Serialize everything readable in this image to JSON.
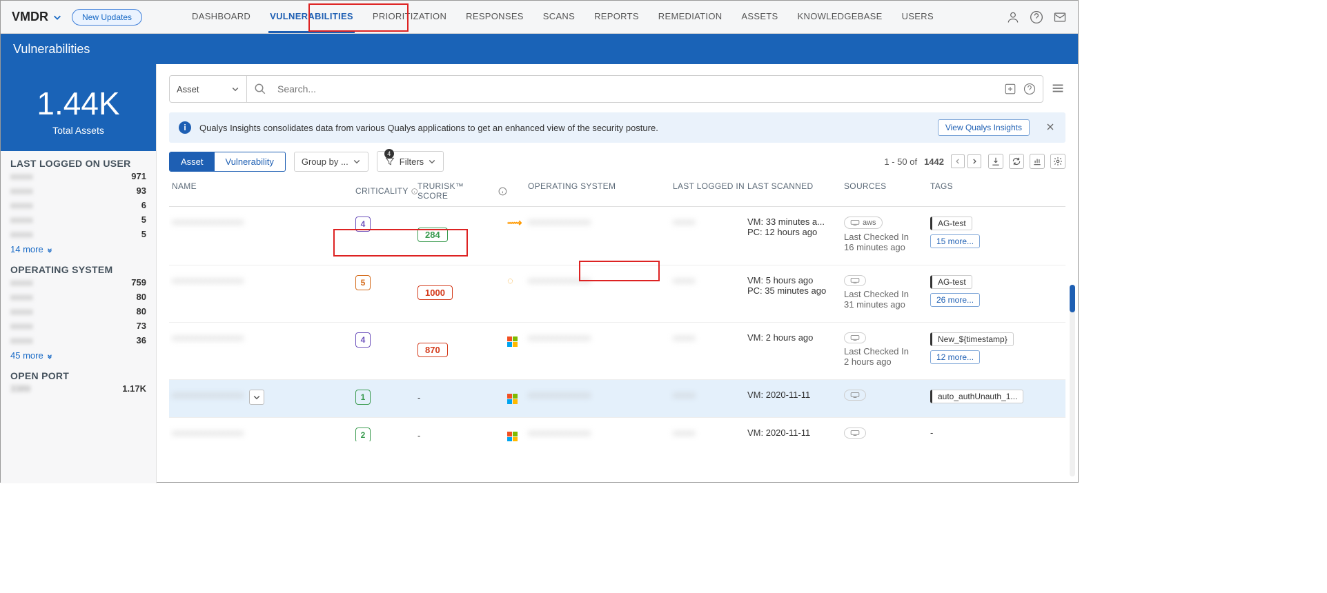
{
  "brand": "VMDR",
  "new_updates": "New Updates",
  "nav": [
    "DASHBOARD",
    "VULNERABILITIES",
    "PRIORITIZATION",
    "RESPONSES",
    "SCANS",
    "REPORTS",
    "REMEDIATION",
    "ASSETS",
    "KNOWLEDGEBASE",
    "USERS"
  ],
  "nav_active": 1,
  "page_title": "Vulnerabilities",
  "stat_num": "1.44K",
  "stat_label": "Total Assets",
  "facets": [
    {
      "title": "LAST LOGGED ON USER",
      "rows": [
        [
          "",
          "971"
        ],
        [
          "",
          "93"
        ],
        [
          "",
          "6"
        ],
        [
          "",
          "5"
        ],
        [
          "",
          "5"
        ]
      ],
      "more": "14 more"
    },
    {
      "title": "OPERATING SYSTEM",
      "rows": [
        [
          "",
          "759"
        ],
        [
          "",
          "80"
        ],
        [
          "",
          "80"
        ],
        [
          "",
          "73"
        ],
        [
          "",
          "36"
        ]
      ],
      "more": "45 more"
    },
    {
      "title": "OPEN PORT",
      "rows": [
        [
          "3389",
          "1.17K"
        ]
      ],
      "more": ""
    }
  ],
  "search_scope": "Asset",
  "search_placeholder": "Search...",
  "insight_text": "Qualys Insights consolidates data from various Qualys applications to get an enhanced view of the security posture.",
  "insight_btn": "View Qualys Insights",
  "seg_asset": "Asset",
  "seg_vuln": "Vulnerability",
  "group_by": "Group by ...",
  "filters": "Filters",
  "filter_count": "4",
  "range_text": "1 - 50 of",
  "range_total": "1442",
  "columns": {
    "name": "NAME",
    "crit": "CRITICALITY",
    "risk": "TruRisk™ Score",
    "os": "OPERATING SYSTEM",
    "login": "LAST LOGGED IN",
    "scan": "LAST SCANNED",
    "src": "SOURCES",
    "tags": "TAGS"
  },
  "rows": [
    {
      "crit": "4",
      "crit_cls": "crit-4",
      "risk": "284",
      "risk_cls": "risk-low",
      "osicon": "aws",
      "scan1": "VM: 33 minutes a...",
      "scan2": "PC: 12 hours ago",
      "src": "aws",
      "src2": "Last Checked In",
      "src3": "16 minutes ago",
      "tag": "AG-test",
      "more": "15 more..."
    },
    {
      "crit": "5",
      "crit_cls": "crit-5",
      "risk": "1000",
      "risk_cls": "risk-high",
      "osicon": "sun",
      "scan1": "VM: 5 hours ago",
      "scan2": "PC: 35 minutes ago",
      "src": "",
      "src2": "Last Checked In",
      "src3": "31 minutes ago",
      "tag": "AG-test",
      "more": "26 more..."
    },
    {
      "crit": "4",
      "crit_cls": "crit-4",
      "risk": "870",
      "risk_cls": "risk-high",
      "osicon": "win",
      "scan1": "VM: 2 hours ago",
      "scan2": "",
      "src": "",
      "src2": "Last Checked In",
      "src3": "2 hours ago",
      "tag": "New_${timestamp}",
      "more": "12 more..."
    },
    {
      "crit": "1",
      "crit_cls": "crit-1",
      "risk": "-",
      "risk_cls": "",
      "osicon": "win",
      "scan1": "VM: 2020-11-11",
      "scan2": "",
      "src": "",
      "src2": "",
      "src3": "",
      "tag": "auto_authUnauth_1...",
      "more": "",
      "selected": true
    },
    {
      "crit": "2",
      "crit_cls": "crit-2",
      "risk": "-",
      "risk_cls": "",
      "osicon": "win",
      "scan1": "VM: 2020-11-11",
      "scan2": "",
      "src": "",
      "src2": "",
      "src3": "",
      "tag": "-",
      "more": ""
    }
  ]
}
